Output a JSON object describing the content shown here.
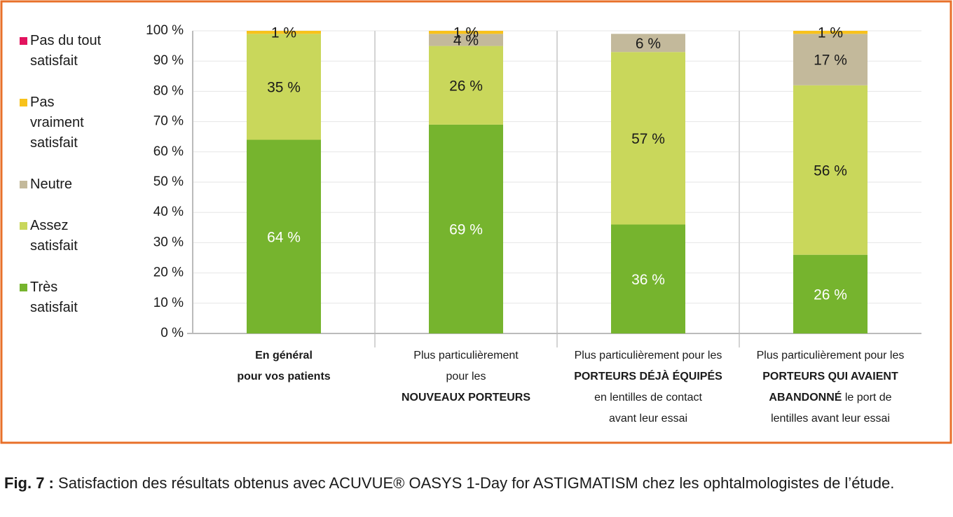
{
  "chart_data": {
    "type": "stacked_bar",
    "categories": [
      [
        [
          {
            "text": "En général",
            "bold": true
          }
        ],
        [
          {
            "text": "pour vos patients",
            "bold": true
          }
        ]
      ],
      [
        [
          {
            "text": "Plus particulièrement"
          }
        ],
        [
          {
            "text": "pour les"
          }
        ],
        [
          {
            "text": "NOUVEAUX PORTEURS",
            "bold": true
          }
        ]
      ],
      [
        [
          {
            "text": "Plus particulièrement pour les"
          }
        ],
        [
          {
            "text": "PORTEURS DÉJÀ ÉQUIPÉS",
            "bold": true
          }
        ],
        [
          {
            "text": "en lentilles de contact"
          }
        ],
        [
          {
            "text": "avant leur essai"
          }
        ]
      ],
      [
        [
          {
            "text": "Plus particulièrement pour les"
          }
        ],
        [
          {
            "text": "PORTEURS QUI AVAIENT",
            "bold": true
          }
        ],
        [
          {
            "text": "ABANDONNÉ",
            "bold": true
          },
          {
            "text": " le port de"
          }
        ],
        [
          {
            "text": "lentilles avant leur essai"
          }
        ]
      ]
    ],
    "series": [
      {
        "name": "Très satisfait",
        "color": "#76b42e",
        "values": [
          64,
          69,
          36,
          26
        ],
        "value_labels": [
          "64 %",
          "69 %",
          "36 %",
          "26 %"
        ]
      },
      {
        "name": "Assez satisfait",
        "color": "#c9d75b",
        "values": [
          35,
          26,
          57,
          56
        ],
        "value_labels": [
          "35 %",
          "26 %",
          "57 %",
          "56 %"
        ]
      },
      {
        "name": "Neutre",
        "color": "#c3b99b",
        "values": [
          0,
          4,
          6,
          17
        ],
        "value_labels": [
          null,
          "4 %",
          "6 %",
          "17 %"
        ]
      },
      {
        "name": "Pas vraiment satisfait",
        "color": "#f8c21b",
        "values": [
          1,
          1,
          0,
          1
        ],
        "value_labels": [
          "1 %",
          "1 %",
          null,
          "1 %"
        ]
      },
      {
        "name": "Pas du tout satisfait",
        "color": "#e2135e",
        "values": [
          0,
          0,
          0,
          0
        ],
        "value_labels": [
          null,
          null,
          null,
          null
        ]
      }
    ],
    "ylim": [
      0,
      100
    ],
    "yticks": [
      {
        "value": 0,
        "label": "0 %"
      },
      {
        "value": 10,
        "label": "10 %"
      },
      {
        "value": 20,
        "label": "20 %"
      },
      {
        "value": 30,
        "label": "30 %"
      },
      {
        "value": 40,
        "label": "40 %"
      },
      {
        "value": 50,
        "label": "50 %"
      },
      {
        "value": 60,
        "label": "60 %"
      },
      {
        "value": 70,
        "label": "70 %"
      },
      {
        "value": 80,
        "label": "80 %"
      },
      {
        "value": 90,
        "label": "90 %"
      },
      {
        "value": 100,
        "label": "100 %"
      }
    ],
    "grid": true,
    "legend": "left"
  },
  "caption": {
    "label": "Fig. 7 :",
    "text": "Satisfaction des résultats obtenus avec ACUVUE® OASYS 1-Day for ASTIGMATISM chez les ophtalmologistes de l’étude."
  }
}
